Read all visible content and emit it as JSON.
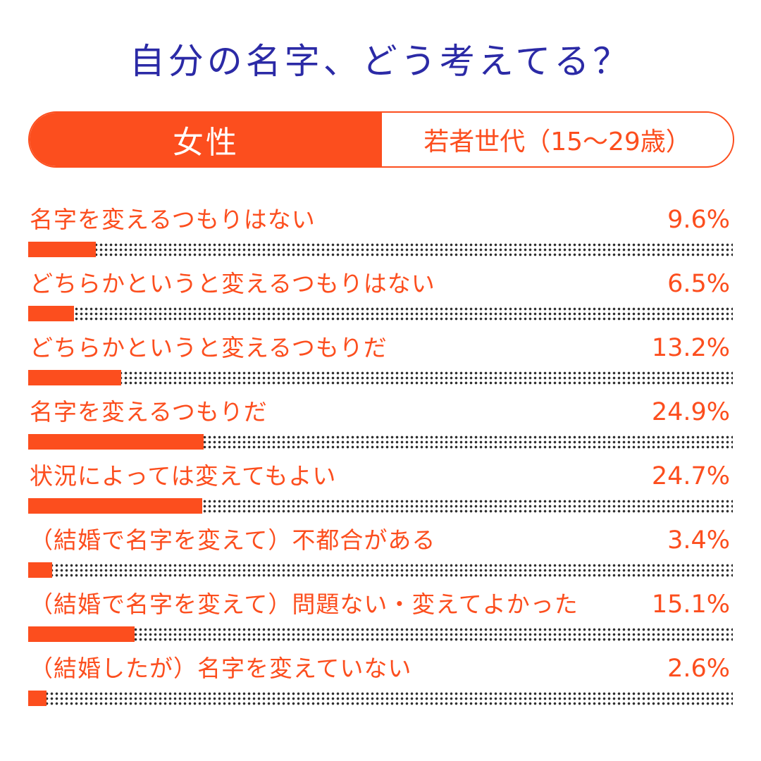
{
  "title": "自分の名字、どう考えてる？",
  "segment": {
    "gender": "女性",
    "generation": "若者世代（15〜29歳）"
  },
  "colors": {
    "accent": "#fc4e1e",
    "title": "#2b2aa6",
    "dots": "#2e2e2e"
  },
  "chart_data": {
    "type": "bar",
    "orientation": "horizontal",
    "title": "自分の名字、どう考えてる？",
    "xlim": [
      0,
      100
    ],
    "grid": false,
    "categories": [
      "名字を変えるつもりはない",
      "どちらかというと変えるつもりはない",
      "どちらかというと変えるつもりだ",
      "名字を変えるつもりだ",
      "状況によっては変えてもよい",
      "（結婚で名字を変えて）不都合がある",
      "（結婚で名字を変えて）問題ない・変えてよかった",
      "（結婚したが）名字を変えていない"
    ],
    "values": [
      9.6,
      6.5,
      13.2,
      24.9,
      24.7,
      3.4,
      15.1,
      2.6
    ],
    "value_labels": [
      "9.6%",
      "6.5%",
      "13.2%",
      "24.9%",
      "24.7%",
      "3.4%",
      "15.1%",
      "2.6%"
    ]
  }
}
